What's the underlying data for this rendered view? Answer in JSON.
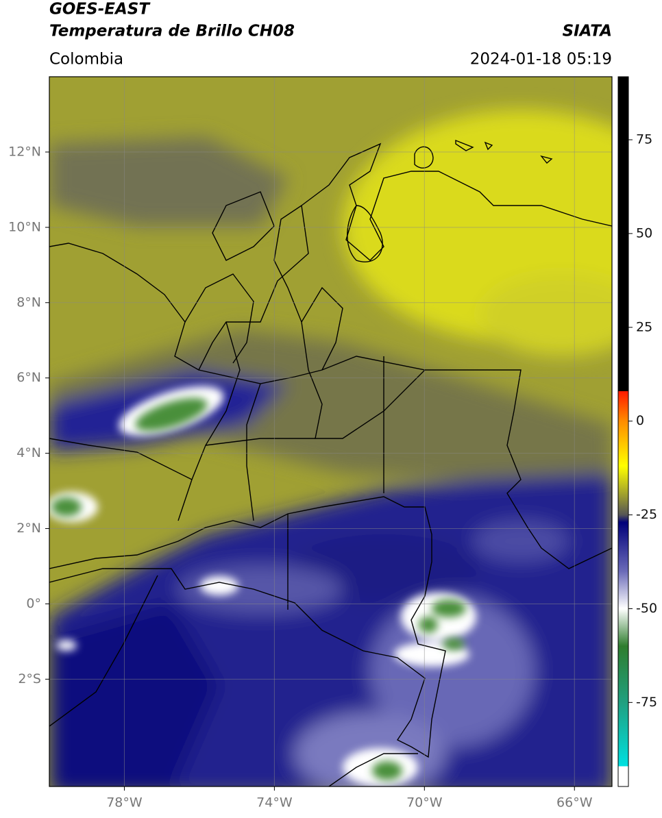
{
  "chart_data": {
    "type": "map",
    "title": "GOES-EAST",
    "subtitle": "Temperatura de Brillo CH08",
    "source": "SIATA",
    "region": "Colombia",
    "timestamp": "2024-01-18 05:19",
    "xlim": [
      -80,
      -65
    ],
    "ylim": [
      -4.85,
      14
    ],
    "xticks": [
      {
        "value": -78,
        "label": "78°W"
      },
      {
        "value": -74,
        "label": "74°W"
      },
      {
        "value": -70,
        "label": "70°W"
      },
      {
        "value": -66,
        "label": "66°W"
      }
    ],
    "yticks": [
      {
        "value": 12,
        "label": "12°N"
      },
      {
        "value": 10,
        "label": "10°N"
      },
      {
        "value": 8,
        "label": "8°N"
      },
      {
        "value": 6,
        "label": "6°N"
      },
      {
        "value": 4,
        "label": "4°N"
      },
      {
        "value": 2,
        "label": "2°N"
      },
      {
        "value": 0,
        "label": "0°"
      },
      {
        "value": -2,
        "label": "2°S"
      }
    ],
    "grid": true,
    "colorbar": {
      "clim": [
        -97.4,
        91.8
      ],
      "ticks": [
        75,
        50,
        25,
        0,
        -25,
        -50,
        -75
      ],
      "colormap": [
        {
          "value": 91.8,
          "color": "#000000"
        },
        {
          "value": 8,
          "color": "#000000"
        },
        {
          "value": 8,
          "color": "#ff1a00"
        },
        {
          "value": 0,
          "color": "#ff8c00"
        },
        {
          "value": -12,
          "color": "#ffff00"
        },
        {
          "value": -20,
          "color": "#9a9a30"
        },
        {
          "value": -25,
          "color": "#555555"
        },
        {
          "value": -27,
          "color": "#00007a"
        },
        {
          "value": -40,
          "color": "#6a6ab8"
        },
        {
          "value": -50,
          "color": "#ffffff"
        },
        {
          "value": -60,
          "color": "#2e7d2e"
        },
        {
          "value": -75,
          "color": "#20a080"
        },
        {
          "value": -92,
          "color": "#00e0e0"
        },
        {
          "value": -92,
          "color": "#ffffff"
        },
        {
          "value": -97.4,
          "color": "#ffffff"
        }
      ]
    }
  }
}
